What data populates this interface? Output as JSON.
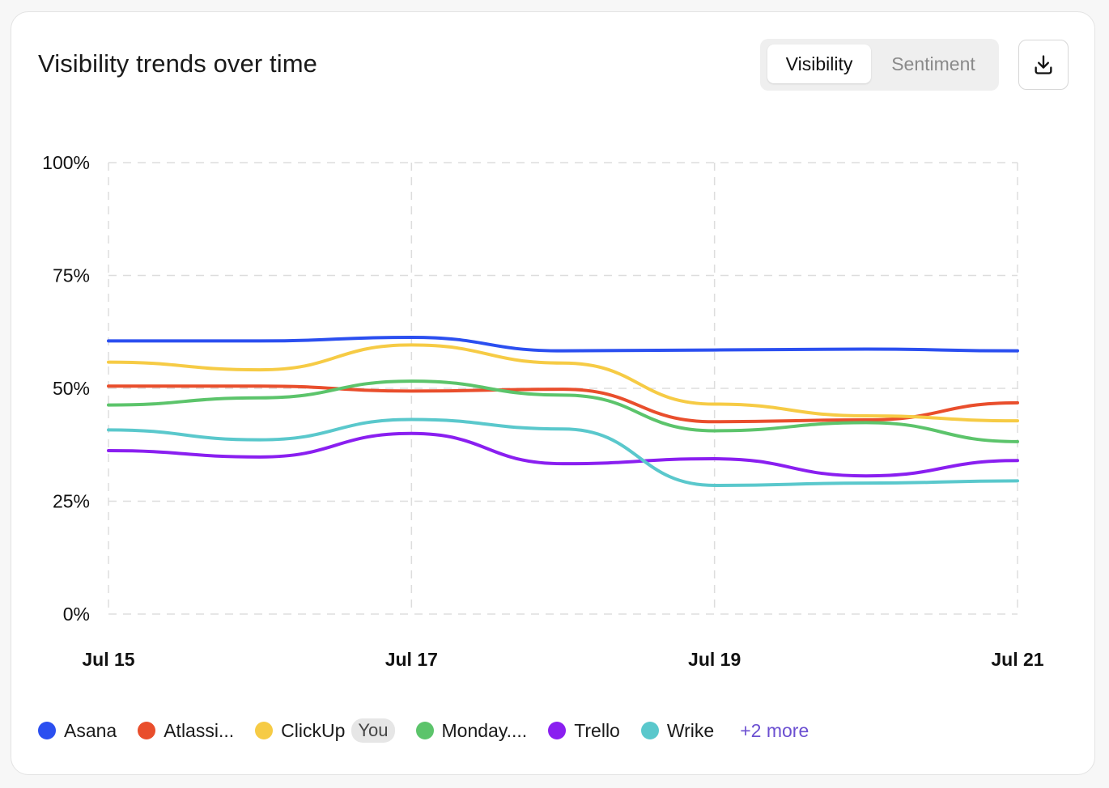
{
  "header": {
    "title": "Visibility trends over time",
    "tabs": [
      {
        "label": "Visibility",
        "active": true
      },
      {
        "label": "Sentiment",
        "active": false
      }
    ],
    "download_icon": "download-icon"
  },
  "legend": {
    "items": [
      {
        "label": "Asana",
        "color": "#2b4ff0"
      },
      {
        "label": "Atlassi...",
        "color": "#e94e2c"
      },
      {
        "label": "ClickUp",
        "color": "#f6cb45",
        "badge": "You"
      },
      {
        "label": "Monday....",
        "color": "#5cc46b"
      },
      {
        "label": "Trello",
        "color": "#8a1ff0"
      },
      {
        "label": "Wrike",
        "color": "#5ac8cc"
      }
    ],
    "more_label": "+2 more"
  },
  "chart_data": {
    "type": "line",
    "x": [
      "Jul 15",
      "Jul 16",
      "Jul 17",
      "Jul 18",
      "Jul 19",
      "Jul 20",
      "Jul 21"
    ],
    "x_tick_labels": [
      "Jul 15",
      "Jul 17",
      "Jul 19",
      "Jul 21"
    ],
    "y_tick_labels": [
      "0%",
      "25%",
      "50%",
      "75%",
      "100%"
    ],
    "ylim": [
      0,
      100
    ],
    "grid": true,
    "grid_style": "dashed",
    "legend_position": "bottom",
    "series": [
      {
        "name": "Asana",
        "color": "#2b4ff0",
        "values": [
          60.5,
          60.5,
          61.3,
          58.3,
          58.5,
          58.7,
          58.3
        ]
      },
      {
        "name": "Atlassi...",
        "color": "#e94e2c",
        "values": [
          50.5,
          50.5,
          49.4,
          49.8,
          42.6,
          43.0,
          46.8
        ]
      },
      {
        "name": "ClickUp",
        "color": "#f6cb45",
        "values": [
          55.8,
          54.1,
          59.6,
          55.6,
          46.5,
          43.9,
          42.8
        ]
      },
      {
        "name": "Monday....",
        "color": "#5cc46b",
        "values": [
          46.3,
          47.9,
          51.6,
          48.5,
          40.6,
          42.4,
          38.2
        ]
      },
      {
        "name": "Trello",
        "color": "#8a1ff0",
        "values": [
          36.2,
          34.8,
          40.0,
          33.3,
          34.4,
          30.6,
          34.0
        ]
      },
      {
        "name": "Wrike",
        "color": "#5ac8cc",
        "values": [
          40.8,
          38.6,
          43.1,
          41.0,
          28.5,
          29.0,
          29.5
        ]
      }
    ]
  }
}
